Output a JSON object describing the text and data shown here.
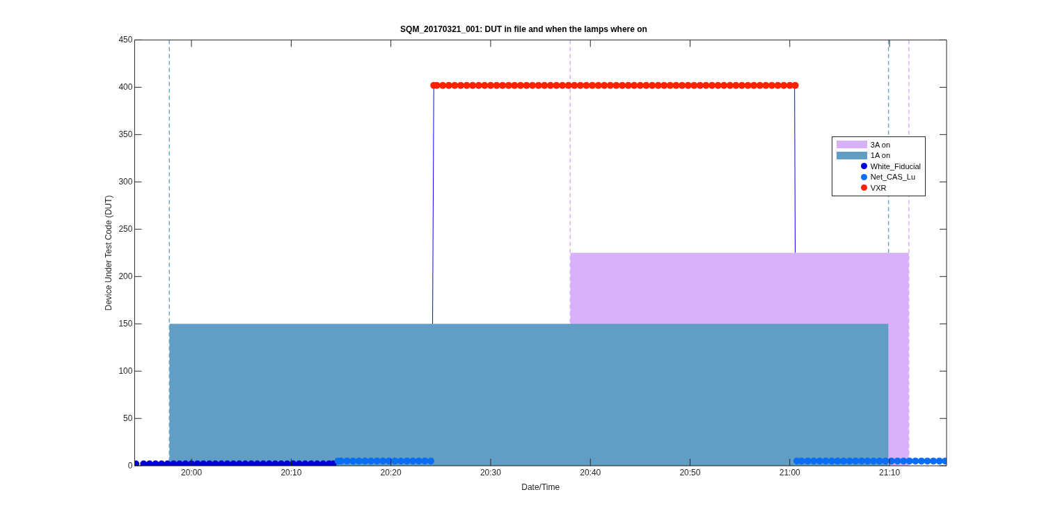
{
  "chart_data": {
    "type": "scatter",
    "title": "SQM_20170321_001: DUT in file and when the lamps where on",
    "xlabel": "Date/Time",
    "ylabel": "Device Under Test Code (DUT)",
    "xlim": [
      19.905,
      21.262
    ],
    "ylim": [
      0,
      450
    ],
    "xticks": [
      {
        "value": 20,
        "label": "20:00"
      },
      {
        "value": 20.1667,
        "label": "20:10"
      },
      {
        "value": 20.3333,
        "label": "20:20"
      },
      {
        "value": 20.5,
        "label": "20:30"
      },
      {
        "value": 20.6667,
        "label": "20:40"
      },
      {
        "value": 20.8333,
        "label": "20:50"
      },
      {
        "value": 21,
        "label": "21:00"
      },
      {
        "value": 21.1667,
        "label": "21:10"
      }
    ],
    "yticks": [
      0,
      50,
      100,
      150,
      200,
      250,
      300,
      350,
      400,
      450
    ],
    "grid": false,
    "legend": "top right",
    "ref_lines": [
      {
        "axis": "x",
        "value": 19.963,
        "color": "#6fa8cc",
        "line_style": "dashed"
      },
      {
        "axis": "x",
        "value": 21.165,
        "color": "#6fa8cc",
        "line_style": "dashed"
      },
      {
        "axis": "x",
        "value": 20.633,
        "color": "#d8b1fb",
        "line_style": "dashed"
      },
      {
        "axis": "x",
        "value": 21.199,
        "color": "#d8b1fb",
        "line_style": "dashed"
      }
    ],
    "series": [
      {
        "type": "line",
        "color": "#0000ff",
        "x": [
          20.403,
          20.405,
          20.7,
          21.008,
          21.009
        ],
        "values": [
          150,
          402,
          null,
          402,
          225
        ]
      },
      {
        "type": "area",
        "name": "3A on",
        "color": "#d8b1fb",
        "x": [
          20.633,
          21.199
        ],
        "values": [
          225,
          225
        ]
      },
      {
        "type": "area",
        "name": "1A on",
        "color": "#629dc5",
        "x": [
          19.963,
          21.165
        ],
        "values": [
          150,
          150
        ]
      },
      {
        "marker": "circle",
        "name": "White_Fiducial",
        "color": "#0000d8",
        "x": [
          19.907,
          19.92,
          19.93,
          19.94,
          19.95,
          19.96,
          19.97,
          19.98,
          19.99,
          20.0,
          20.01,
          20.02,
          20.03,
          20.04,
          20.05,
          20.06,
          20.07,
          20.08,
          20.09,
          20.1,
          20.11,
          20.12,
          20.13,
          20.14,
          20.15,
          20.16,
          20.17,
          20.18,
          20.19,
          20.2,
          20.21,
          20.22,
          20.23,
          20.237
        ],
        "values": [
          2,
          2,
          2,
          2,
          2,
          2,
          2,
          2,
          2,
          2,
          2,
          2,
          2,
          2,
          2,
          2,
          2,
          2,
          2,
          2,
          2,
          2,
          2,
          2,
          2,
          2,
          2,
          2,
          2,
          2,
          2,
          2,
          2,
          2
        ]
      },
      {
        "marker": "circle",
        "name": "Net_CAS_Lu",
        "color": "#0a6ef5",
        "x": [
          20.245,
          20.25,
          20.26,
          20.27,
          20.28,
          20.29,
          20.3,
          20.31,
          20.32,
          20.33,
          20.34,
          20.35,
          20.36,
          20.37,
          20.38,
          20.39,
          20.4,
          21.012,
          21.02,
          21.03,
          21.04,
          21.05,
          21.06,
          21.07,
          21.08,
          21.09,
          21.1,
          21.11,
          21.12,
          21.13,
          21.14,
          21.15,
          21.16,
          21.17,
          21.18,
          21.19,
          21.2,
          21.21,
          21.22,
          21.23,
          21.24,
          21.25,
          21.26
        ],
        "values": [
          5,
          5,
          5,
          5,
          5,
          5,
          5,
          5,
          5,
          5,
          5,
          5,
          5,
          5,
          5,
          5,
          5,
          5,
          5,
          5,
          5,
          5,
          5,
          5,
          5,
          5,
          5,
          5,
          5,
          5,
          5,
          5,
          5,
          5,
          5,
          5,
          5,
          5,
          5,
          5,
          5,
          5,
          5
        ]
      },
      {
        "marker": "circle",
        "name": "VXR",
        "color": "#ff2200",
        "x": [
          20.405,
          20.41,
          20.42,
          20.43,
          20.44,
          20.45,
          20.46,
          20.47,
          20.48,
          20.49,
          20.5,
          20.51,
          20.52,
          20.53,
          20.54,
          20.55,
          20.56,
          20.57,
          20.58,
          20.59,
          20.6,
          20.61,
          20.62,
          20.63,
          20.64,
          20.65,
          20.66,
          20.67,
          20.68,
          20.69,
          20.7,
          20.71,
          20.72,
          20.73,
          20.74,
          20.75,
          20.76,
          20.77,
          20.78,
          20.79,
          20.8,
          20.81,
          20.82,
          20.83,
          20.84,
          20.85,
          20.86,
          20.87,
          20.88,
          20.89,
          20.9,
          20.91,
          20.92,
          20.93,
          20.94,
          20.95,
          20.96,
          20.97,
          20.98,
          20.99,
          21.0,
          21.009
        ],
        "values": [
          402,
          402,
          402,
          402,
          402,
          402,
          402,
          402,
          402,
          402,
          402,
          402,
          402,
          402,
          402,
          402,
          402,
          402,
          402,
          402,
          402,
          402,
          402,
          402,
          402,
          402,
          402,
          402,
          402,
          402,
          402,
          402,
          402,
          402,
          402,
          402,
          402,
          402,
          402,
          402,
          402,
          402,
          402,
          402,
          402,
          402,
          402,
          402,
          402,
          402,
          402,
          402,
          402,
          402,
          402,
          402,
          402,
          402,
          402,
          402,
          402,
          402
        ]
      }
    ]
  }
}
